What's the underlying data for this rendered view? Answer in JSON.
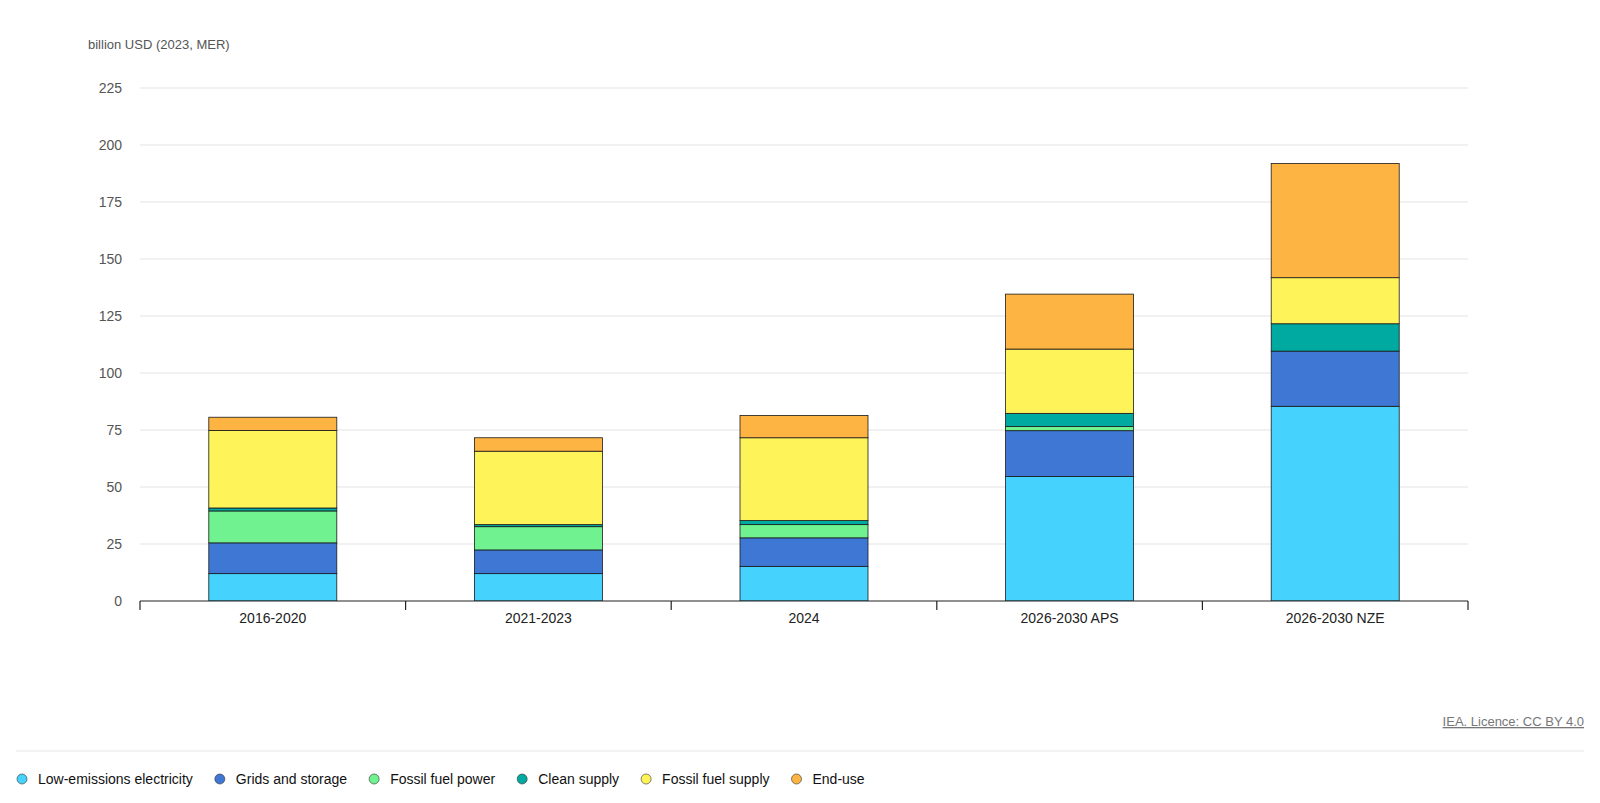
{
  "chart_data": {
    "type": "bar",
    "stacked": true,
    "grid": true,
    "legend": "bottom-left",
    "y_label": "billion USD (2023, MER)",
    "source": "IEA. Licence: CC BY 4.0",
    "categories": [
      "2016-2020",
      "2021-2023",
      "2024",
      "2026-2030 APS",
      "2026-2030 NZE"
    ],
    "ylim": [
      0,
      225
    ],
    "yticks": [
      0,
      25,
      50,
      75,
      100,
      125,
      150,
      175,
      200,
      225
    ],
    "series": [
      {
        "name": "Low-emissions electricity",
        "color": "#45d3fd",
        "values": [
          12,
          12,
          15.2,
          54.6,
          85.4
        ]
      },
      {
        "name": "Grids and storage",
        "color": "#3f78d4",
        "values": [
          13.5,
          10.4,
          12.5,
          20.1,
          24.2
        ]
      },
      {
        "name": "Fossil fuel power",
        "color": "#6ff28f",
        "values": [
          14,
          10.2,
          5.8,
          1.8,
          0
        ]
      },
      {
        "name": "Clean supply",
        "color": "#00aaa0",
        "values": [
          1.3,
          0.9,
          1.8,
          5.8,
          12
        ]
      },
      {
        "name": "Fossil fuel supply",
        "color": "#fef45a",
        "values": [
          34,
          32.2,
          36.3,
          28.2,
          20.2
        ]
      },
      {
        "name": "End-use",
        "color": "#fdb443",
        "values": [
          5.8,
          5.9,
          9.8,
          24.1,
          50.1
        ]
      }
    ]
  }
}
